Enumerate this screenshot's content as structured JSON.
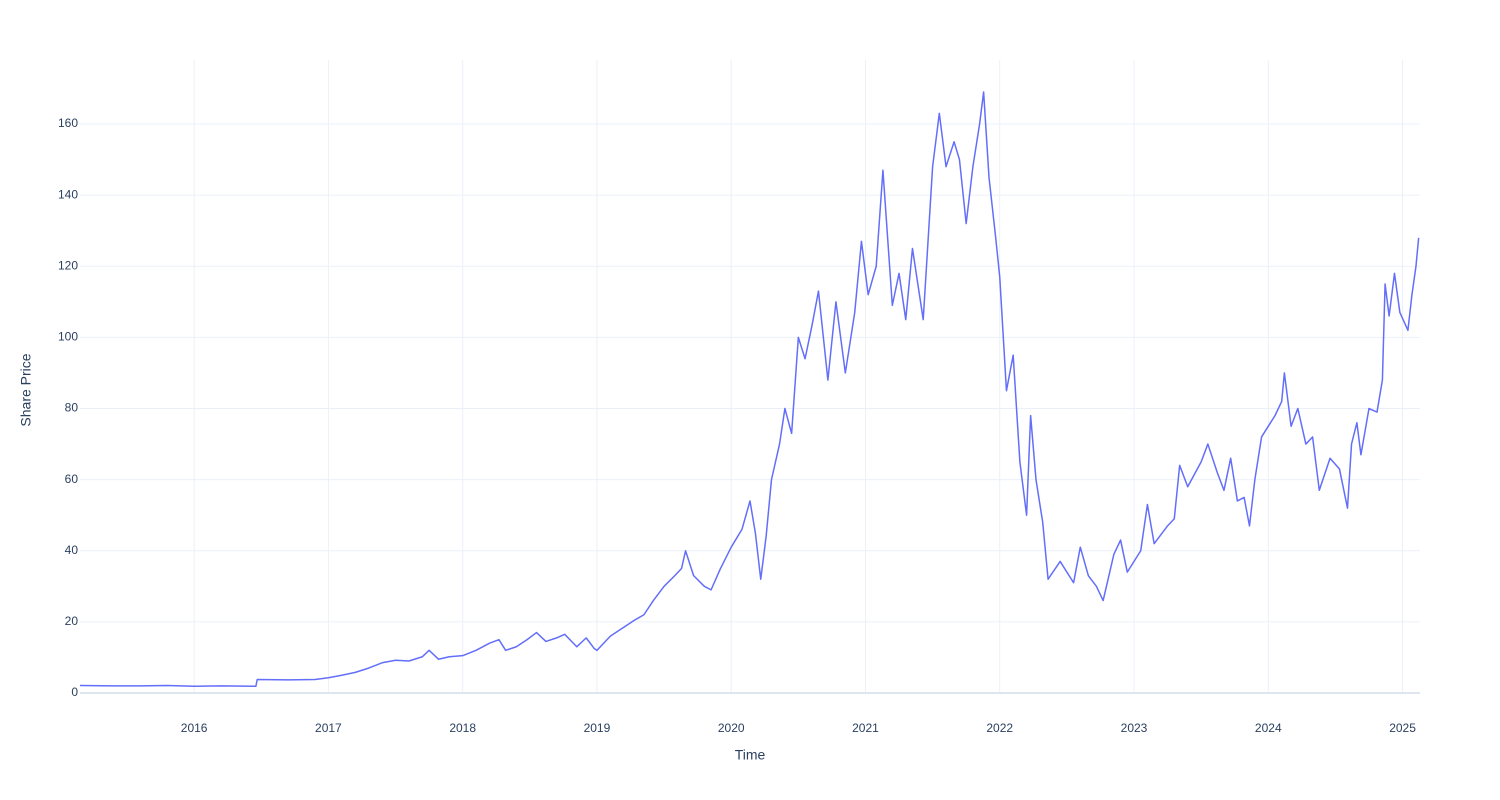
{
  "chart_data": {
    "type": "line",
    "x_label": "Time",
    "y_label": "Share Price",
    "x": [
      2015.15,
      2015.4,
      2015.6,
      2015.8,
      2016.0,
      2016.2,
      2016.46,
      2016.47,
      2016.7,
      2016.9,
      2017.0,
      2017.1,
      2017.2,
      2017.3,
      2017.4,
      2017.5,
      2017.6,
      2017.7,
      2017.75,
      2017.82,
      2017.9,
      2018.0,
      2018.1,
      2018.2,
      2018.27,
      2018.32,
      2018.4,
      2018.48,
      2018.55,
      2018.62,
      2018.7,
      2018.76,
      2018.85,
      2018.92,
      2018.98,
      2019.0,
      2019.1,
      2019.2,
      2019.28,
      2019.35,
      2019.42,
      2019.5,
      2019.58,
      2019.63,
      2019.66,
      2019.72,
      2019.8,
      2019.85,
      2019.92,
      2020.0,
      2020.08,
      2020.14,
      2020.18,
      2020.22,
      2020.26,
      2020.3,
      2020.36,
      2020.4,
      2020.45,
      2020.5,
      2020.55,
      2020.6,
      2020.65,
      2020.72,
      2020.78,
      2020.85,
      2020.92,
      2020.97,
      2021.02,
      2021.08,
      2021.13,
      2021.2,
      2021.25,
      2021.3,
      2021.35,
      2021.43,
      2021.5,
      2021.55,
      2021.6,
      2021.66,
      2021.7,
      2021.75,
      2021.8,
      2021.85,
      2021.88,
      2021.92,
      2021.97,
      2022.0,
      2022.05,
      2022.1,
      2022.15,
      2022.2,
      2022.23,
      2022.27,
      2022.32,
      2022.36,
      2022.45,
      2022.55,
      2022.6,
      2022.66,
      2022.72,
      2022.77,
      2022.85,
      2022.9,
      2022.95,
      2023.05,
      2023.1,
      2023.15,
      2023.25,
      2023.3,
      2023.34,
      2023.4,
      2023.5,
      2023.55,
      2023.62,
      2023.67,
      2023.72,
      2023.77,
      2023.82,
      2023.86,
      2023.9,
      2023.95,
      2024.05,
      2024.1,
      2024.12,
      2024.17,
      2024.22,
      2024.28,
      2024.33,
      2024.38,
      2024.46,
      2024.53,
      2024.59,
      2024.62,
      2024.66,
      2024.69,
      2024.75,
      2024.81,
      2024.85,
      2024.87,
      2024.9,
      2024.94,
      2024.98,
      2025.04,
      2025.07,
      2025.1,
      2025.12
    ],
    "series": [
      {
        "name": "Share Price",
        "color": "#636efa",
        "values": [
          2.1,
          2.0,
          2.0,
          2.1,
          1.9,
          2.0,
          1.9,
          3.8,
          3.7,
          3.8,
          4.3,
          5.0,
          5.8,
          7.0,
          8.5,
          9.2,
          9.0,
          10.2,
          12.0,
          9.5,
          10.2,
          10.5,
          12.0,
          14.0,
          15.0,
          12.0,
          13.0,
          15.0,
          17.0,
          14.5,
          15.5,
          16.5,
          13.0,
          15.5,
          12.5,
          12.0,
          16.0,
          18.5,
          20.5,
          22.0,
          26.0,
          30.0,
          33.0,
          35.0,
          40.0,
          33.0,
          30.0,
          29.0,
          35.0,
          41.0,
          46.0,
          54.0,
          45.0,
          32.0,
          44.0,
          60.0,
          70.0,
          80.0,
          73.0,
          100.0,
          94.0,
          103.0,
          113.0,
          88.0,
          110.0,
          90.0,
          107.0,
          127.0,
          112.0,
          120.0,
          147.0,
          109.0,
          118.0,
          105.0,
          125.0,
          105.0,
          148.0,
          163.0,
          148.0,
          155.0,
          150.0,
          132.0,
          148.0,
          160.0,
          169.0,
          145.0,
          128.0,
          117.0,
          85.0,
          95.0,
          65.0,
          50.0,
          78.0,
          60.0,
          48.0,
          32.0,
          37.0,
          31.0,
          41.0,
          33.0,
          30.0,
          26.0,
          39.0,
          43.0,
          34.0,
          40.0,
          53.0,
          42.0,
          47.0,
          49.0,
          64.0,
          58.0,
          65.0,
          70.0,
          62.0,
          57.0,
          66.0,
          54.0,
          55.0,
          47.0,
          60.0,
          72.0,
          78.0,
          82.0,
          90.0,
          75.0,
          80.0,
          70.0,
          72.0,
          57.0,
          66.0,
          63.0,
          52.0,
          70.0,
          76.0,
          67.0,
          80.0,
          79.0,
          88.0,
          115.0,
          106.0,
          118.0,
          107.0,
          102.0,
          112.0,
          120.0,
          128.0
        ]
      }
    ],
    "xlim": [
      2015.15,
      2025.13
    ],
    "xticks": [
      2016,
      2017,
      2018,
      2019,
      2020,
      2021,
      2022,
      2023,
      2024,
      2025
    ],
    "ylim": [
      0,
      178
    ],
    "yticks": [
      0,
      20,
      40,
      60,
      80,
      100,
      120,
      140,
      160
    ],
    "grid": true
  }
}
